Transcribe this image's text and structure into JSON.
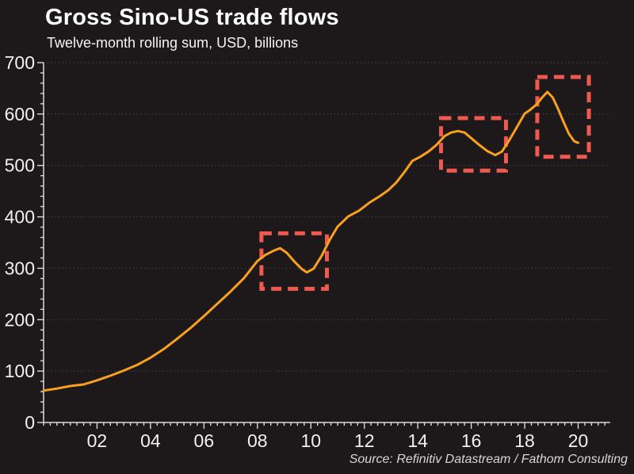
{
  "chart_data": {
    "type": "line",
    "title": "Gross Sino-US trade flows",
    "subtitle": "Twelve-month rolling sum, USD, billions",
    "source": "Source: Refinitiv Datastream / Fathom Consulting",
    "xlabel": "",
    "ylabel": "",
    "x_domain": [
      2000,
      2021.2
    ],
    "y_domain": [
      0,
      700
    ],
    "y_tick_step": 100,
    "y_minor_step": 20,
    "x_minor_step": 0.25,
    "grid": "dotted-horizontal",
    "legend_position": "none",
    "gridline_values": [
      100,
      200,
      300,
      400,
      500,
      600,
      700
    ],
    "y_tick_values": [
      0,
      100,
      200,
      300,
      400,
      500,
      600,
      700
    ],
    "x_ticks": [
      {
        "year": 2002,
        "label": "02"
      },
      {
        "year": 2004,
        "label": "04"
      },
      {
        "year": 2006,
        "label": "06"
      },
      {
        "year": 2008,
        "label": "08"
      },
      {
        "year": 2010,
        "label": "10"
      },
      {
        "year": 2012,
        "label": "12"
      },
      {
        "year": 2014,
        "label": "14"
      },
      {
        "year": 2016,
        "label": "16"
      },
      {
        "year": 2018,
        "label": "18"
      },
      {
        "year": 2020,
        "label": "20"
      }
    ],
    "series": [
      {
        "name": "gross-sino-us-trade-flows",
        "color": "#f9a11e",
        "points": [
          [
            2000.0,
            62
          ],
          [
            2000.5,
            66
          ],
          [
            2001.0,
            71
          ],
          [
            2001.5,
            74
          ],
          [
            2002.0,
            82
          ],
          [
            2002.5,
            91
          ],
          [
            2003.0,
            101
          ],
          [
            2003.5,
            112
          ],
          [
            2004.0,
            126
          ],
          [
            2004.5,
            143
          ],
          [
            2005.0,
            163
          ],
          [
            2005.5,
            184
          ],
          [
            2006.0,
            207
          ],
          [
            2006.5,
            231
          ],
          [
            2007.0,
            255
          ],
          [
            2007.5,
            281
          ],
          [
            2008.0,
            314
          ],
          [
            2008.3,
            326
          ],
          [
            2008.6,
            334
          ],
          [
            2008.85,
            339
          ],
          [
            2009.1,
            330
          ],
          [
            2009.4,
            312
          ],
          [
            2009.65,
            299
          ],
          [
            2009.85,
            292
          ],
          [
            2010.1,
            299
          ],
          [
            2010.4,
            324
          ],
          [
            2010.7,
            355
          ],
          [
            2011.0,
            381
          ],
          [
            2011.4,
            401
          ],
          [
            2011.8,
            412
          ],
          [
            2012.2,
            428
          ],
          [
            2012.6,
            441
          ],
          [
            2012.9,
            452
          ],
          [
            2013.2,
            467
          ],
          [
            2013.5,
            487
          ],
          [
            2013.8,
            509
          ],
          [
            2014.1,
            517
          ],
          [
            2014.4,
            527
          ],
          [
            2014.7,
            540
          ],
          [
            2015.0,
            557
          ],
          [
            2015.25,
            564
          ],
          [
            2015.5,
            567
          ],
          [
            2015.75,
            564
          ],
          [
            2016.0,
            553
          ],
          [
            2016.3,
            540
          ],
          [
            2016.6,
            528
          ],
          [
            2016.9,
            520
          ],
          [
            2017.15,
            527
          ],
          [
            2017.4,
            547
          ],
          [
            2017.7,
            574
          ],
          [
            2018.0,
            601
          ],
          [
            2018.2,
            608
          ],
          [
            2018.45,
            619
          ],
          [
            2018.65,
            632
          ],
          [
            2018.85,
            643
          ],
          [
            2019.05,
            632
          ],
          [
            2019.25,
            610
          ],
          [
            2019.45,
            585
          ],
          [
            2019.65,
            562
          ],
          [
            2019.85,
            547
          ],
          [
            2020.0,
            544
          ]
        ]
      }
    ],
    "highlight_boxes": [
      {
        "x": [
          2008.15,
          2010.6
        ],
        "y": [
          260,
          368
        ]
      },
      {
        "x": [
          2014.87,
          2017.3
        ],
        "y": [
          490,
          592
        ]
      },
      {
        "x": [
          2018.47,
          2020.4
        ],
        "y": [
          517,
          672
        ]
      }
    ],
    "colors": {
      "background": "#1d191a",
      "line": "#f9a11e",
      "highlight_box": "#ee5a4f",
      "title_text": "#ffffff",
      "grid": "#433d3e",
      "axis": "#dbd9d9",
      "tick_label": "#f2f0f0",
      "source_text": "#d8d6d6"
    }
  }
}
